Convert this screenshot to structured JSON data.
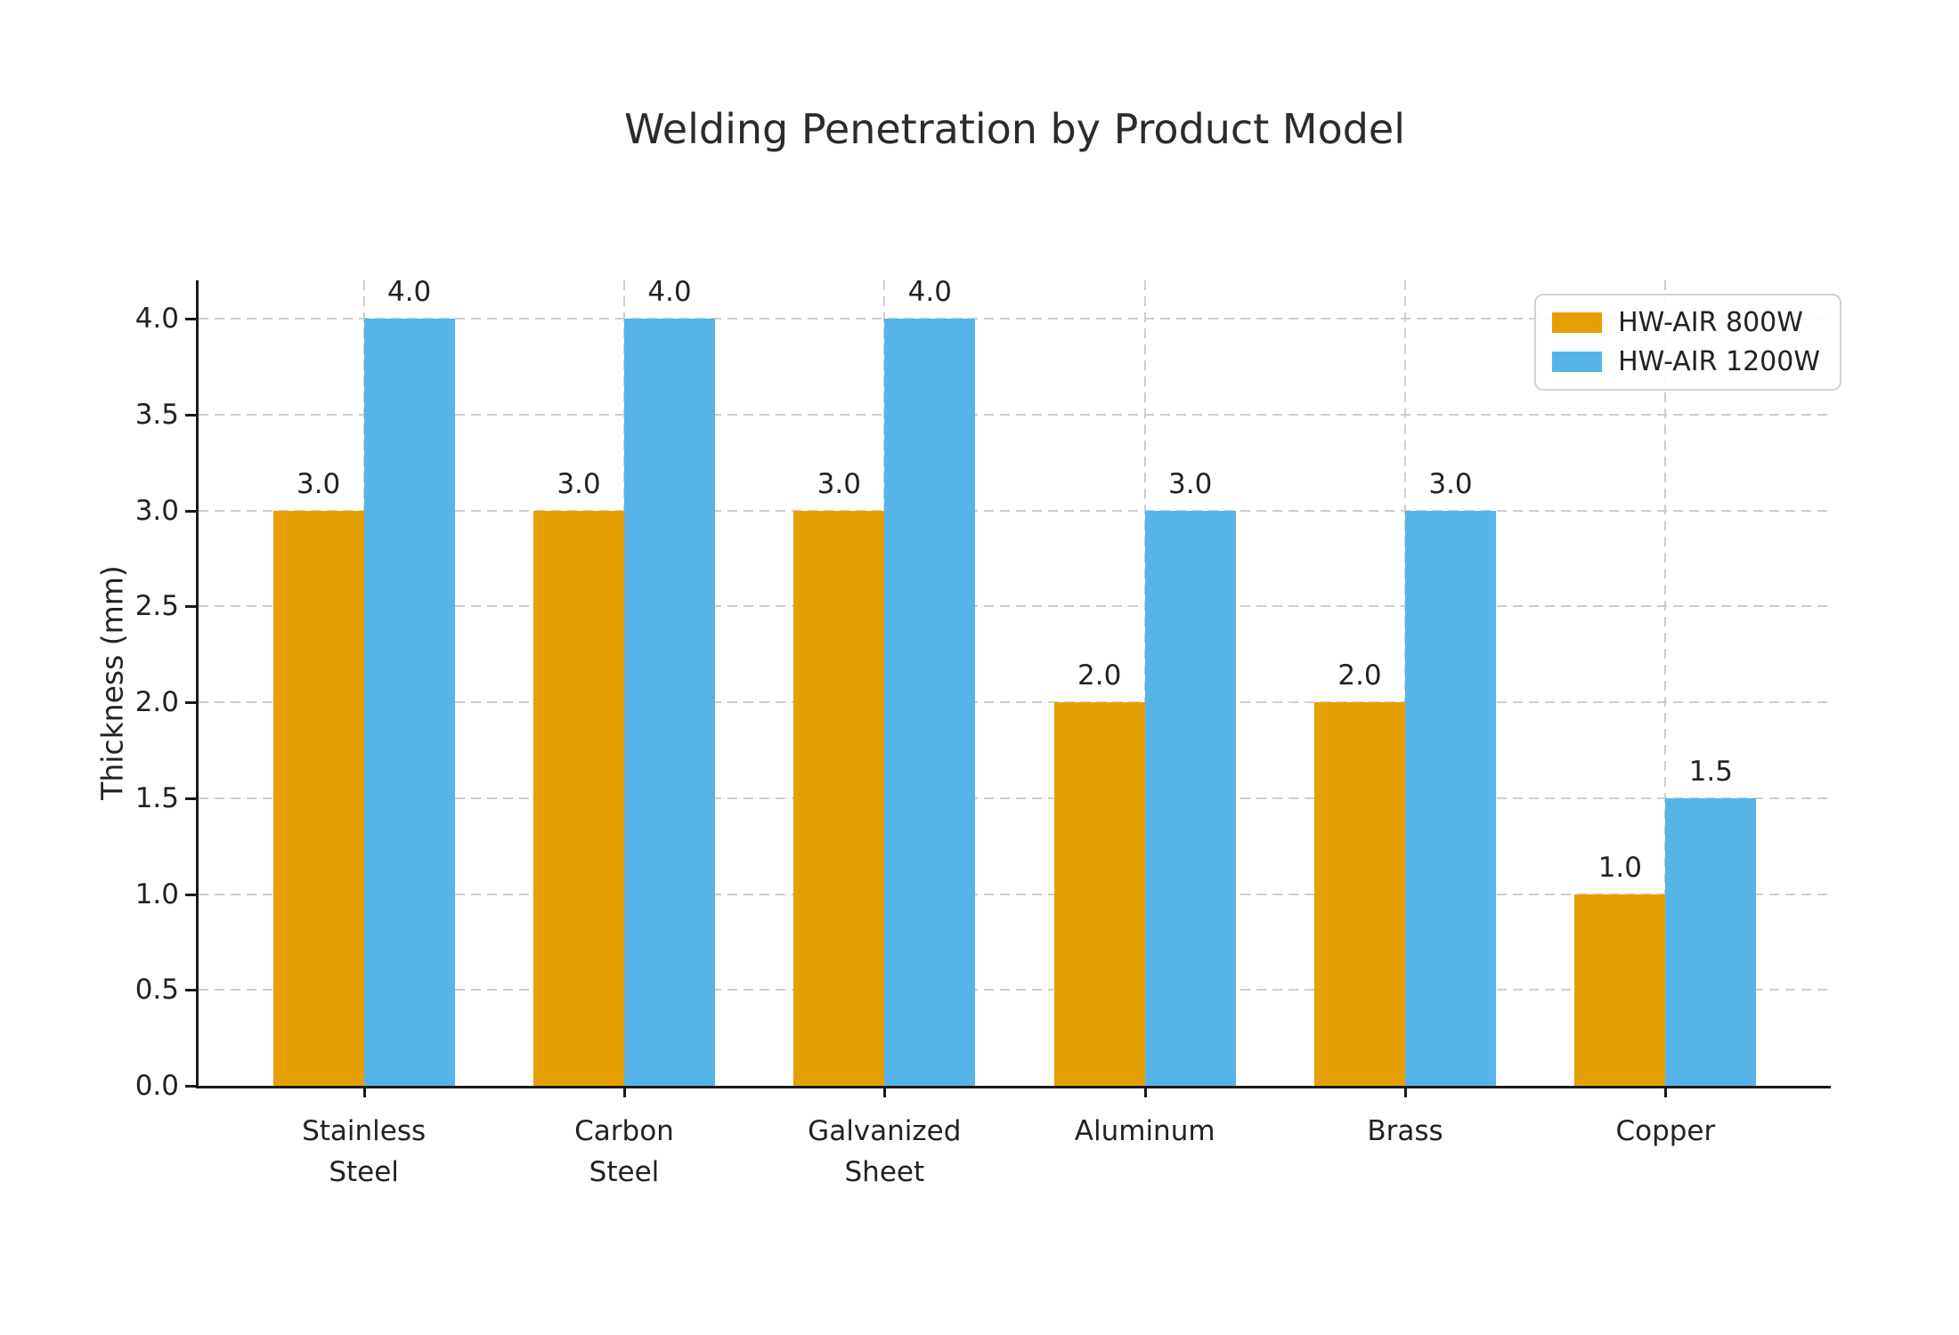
{
  "chart_data": {
    "type": "bar",
    "title": "Welding Penetration by Product Model",
    "xlabel": "",
    "ylabel": "Thickness (mm)",
    "categories": [
      "Stainless\nSteel",
      "Carbon\nSteel",
      "Galvanized\nSheet",
      "Aluminum",
      "Brass",
      "Copper"
    ],
    "series": [
      {
        "name": "HW-AIR 800W",
        "color": "#E69F00",
        "values": [
          3.0,
          3.0,
          3.0,
          2.0,
          2.0,
          1.0
        ]
      },
      {
        "name": "HW-AIR 1200W",
        "color": "#56B4E9",
        "values": [
          4.0,
          4.0,
          4.0,
          3.0,
          3.0,
          1.5
        ]
      }
    ],
    "bar_value_labels": [
      [
        "3.0",
        "3.0",
        "3.0",
        "2.0",
        "2.0",
        "1.0"
      ],
      [
        "4.0",
        "4.0",
        "4.0",
        "3.0",
        "3.0",
        "1.5"
      ]
    ],
    "ytick_labels": [
      "0.0",
      "0.5",
      "1.0",
      "1.5",
      "2.0",
      "2.5",
      "3.0",
      "3.5",
      "4.0"
    ],
    "yticks": [
      0.0,
      0.5,
      1.0,
      1.5,
      2.0,
      2.5,
      3.0,
      3.5,
      4.0
    ],
    "ylim": [
      0,
      4.2
    ],
    "grid": "on",
    "grid_style": "dashed",
    "grid_color": "#cdcdcd",
    "axis_color": "#1a1a1a",
    "text_color": "#222222",
    "legend_position": "upper right"
  }
}
